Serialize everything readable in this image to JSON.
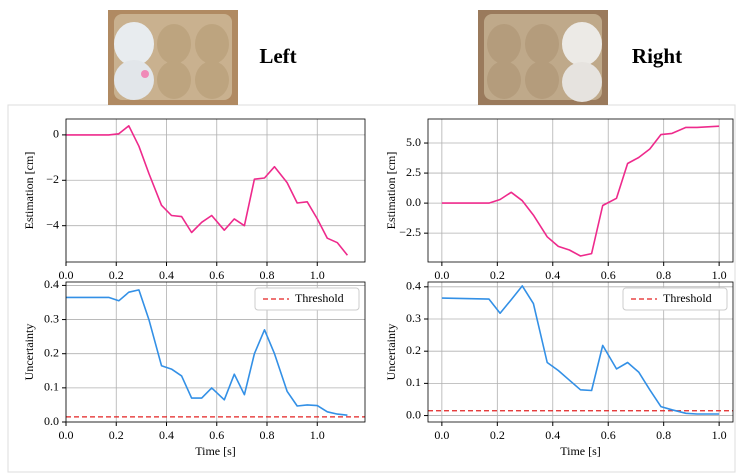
{
  "column_labels": [
    "Left",
    "Right"
  ],
  "chart_data": [
    {
      "type": "line",
      "ylabel": "Estimation [cm]",
      "x": [
        0,
        0.17,
        0.21,
        0.25,
        0.29,
        0.33,
        0.38,
        0.42,
        0.46,
        0.5,
        0.54,
        0.58,
        0.63,
        0.67,
        0.71,
        0.75,
        0.79,
        0.83,
        0.88,
        0.92,
        0.96,
        1.0,
        1.04,
        1.08,
        1.12
      ],
      "series": [
        {
          "color": "#ee2a8c",
          "values": [
            0,
            0,
            0.05,
            0.4,
            -0.5,
            -1.7,
            -3.1,
            -3.55,
            -3.6,
            -4.3,
            -3.85,
            -3.55,
            -4.2,
            -3.7,
            -4.0,
            -1.95,
            -1.9,
            -1.4,
            -2.1,
            -3.0,
            -2.95,
            -3.7,
            -4.55,
            -4.75,
            -5.3
          ]
        }
      ],
      "xlim": [
        0,
        1.19
      ],
      "ylim": [
        -5.6,
        0.7
      ],
      "xticks": [
        {
          "value": 0,
          "label": "0.0"
        },
        {
          "value": 0.2,
          "label": "0.2"
        },
        {
          "value": 0.4,
          "label": "0.4"
        },
        {
          "value": 0.6,
          "label": "0.6"
        },
        {
          "value": 0.8,
          "label": "0.8"
        },
        {
          "value": 1.0,
          "label": "1.0"
        }
      ],
      "yticks": [
        {
          "value": -4,
          "label": "−4"
        },
        {
          "value": -2,
          "label": "−2"
        },
        0
      ],
      "grid": true
    },
    {
      "type": "line",
      "ylabel": "Estimation [cm]",
      "x": [
        0,
        0.17,
        0.21,
        0.25,
        0.29,
        0.33,
        0.38,
        0.42,
        0.46,
        0.5,
        0.54,
        0.58,
        0.63,
        0.67,
        0.71,
        0.75,
        0.79,
        0.83,
        0.88,
        0.92,
        1.0
      ],
      "series": [
        {
          "color": "#ee2a8c",
          "values": [
            0,
            0,
            0.3,
            0.9,
            0.2,
            -1,
            -2.8,
            -3.6,
            -3.9,
            -4.4,
            -4.2,
            -0.2,
            0.4,
            3.3,
            3.8,
            4.5,
            5.7,
            5.8,
            6.3,
            6.3,
            6.4
          ]
        }
      ],
      "xlim": [
        -0.05,
        1.05
      ],
      "ylim": [
        -4.9,
        7.0
      ],
      "xticks": [
        {
          "value": 0,
          "label": "0.0"
        },
        {
          "value": 0.2,
          "label": "0.2"
        },
        {
          "value": 0.4,
          "label": "0.4"
        },
        {
          "value": 0.6,
          "label": "0.6"
        },
        {
          "value": 0.8,
          "label": "0.8"
        },
        {
          "value": 1.0,
          "label": "1.0"
        }
      ],
      "yticks": [
        {
          "value": -2.5,
          "label": "−2.5"
        },
        {
          "value": 0,
          "label": "0.0"
        },
        {
          "value": 2.5,
          "label": "2.5"
        },
        {
          "value": 5.0,
          "label": "5.0"
        }
      ],
      "grid": true
    },
    {
      "type": "line",
      "ylabel": "Uncertainty",
      "xlabel": "Time [s]",
      "x": [
        0,
        0.17,
        0.21,
        0.25,
        0.29,
        0.33,
        0.38,
        0.42,
        0.46,
        0.5,
        0.54,
        0.58,
        0.63,
        0.67,
        0.71,
        0.75,
        0.79,
        0.83,
        0.88,
        0.92,
        0.96,
        1.0,
        1.04,
        1.08,
        1.12
      ],
      "series": [
        {
          "color": "#3390e6",
          "values": [
            0.365,
            0.365,
            0.355,
            0.38,
            0.387,
            0.3,
            0.165,
            0.155,
            0.135,
            0.07,
            0.07,
            0.1,
            0.065,
            0.14,
            0.08,
            0.2,
            0.27,
            0.2,
            0.09,
            0.047,
            0.05,
            0.048,
            0.03,
            0.023,
            0.02
          ]
        }
      ],
      "threshold": {
        "name": "Threshold",
        "value": 0.015,
        "color": "#e32222"
      },
      "legend": "upper right",
      "xlim": [
        0,
        1.19
      ],
      "ylim": [
        0,
        0.41
      ],
      "xticks": [
        {
          "value": 0,
          "label": "0.0"
        },
        {
          "value": 0.2,
          "label": "0.2"
        },
        {
          "value": 0.4,
          "label": "0.4"
        },
        {
          "value": 0.6,
          "label": "0.6"
        },
        {
          "value": 0.8,
          "label": "0.8"
        },
        {
          "value": 1.0,
          "label": "1.0"
        }
      ],
      "yticks": [
        {
          "value": 0,
          "label": "0.0"
        },
        0.1,
        0.2,
        0.3,
        0.4
      ],
      "grid": true
    },
    {
      "type": "line",
      "ylabel": "Uncertainty",
      "xlabel": "Time [s]",
      "x": [
        0,
        0.17,
        0.21,
        0.25,
        0.29,
        0.33,
        0.38,
        0.42,
        0.46,
        0.5,
        0.54,
        0.58,
        0.63,
        0.67,
        0.71,
        0.75,
        0.79,
        0.83,
        0.88,
        0.92,
        1.0
      ],
      "series": [
        {
          "color": "#3390e6",
          "values": [
            0.365,
            0.362,
            0.318,
            0.36,
            0.403,
            0.348,
            0.165,
            0.14,
            0.11,
            0.08,
            0.078,
            0.218,
            0.145,
            0.165,
            0.135,
            0.08,
            0.028,
            0.018,
            0.007,
            0.005,
            0.005
          ]
        }
      ],
      "threshold": {
        "name": "Threshold",
        "value": 0.015,
        "color": "#e32222"
      },
      "legend": "upper right",
      "xlim": [
        -0.05,
        1.05
      ],
      "ylim": [
        -0.02,
        0.415
      ],
      "xticks": [
        {
          "value": 0,
          "label": "0.0"
        },
        {
          "value": 0.2,
          "label": "0.2"
        },
        {
          "value": 0.4,
          "label": "0.4"
        },
        {
          "value": 0.6,
          "label": "0.6"
        },
        {
          "value": 0.8,
          "label": "0.8"
        },
        {
          "value": 1.0,
          "label": "1.0"
        }
      ],
      "yticks": [
        {
          "value": 0,
          "label": "0.0"
        },
        0.1,
        0.2,
        0.3,
        0.4
      ],
      "grid": true
    }
  ]
}
